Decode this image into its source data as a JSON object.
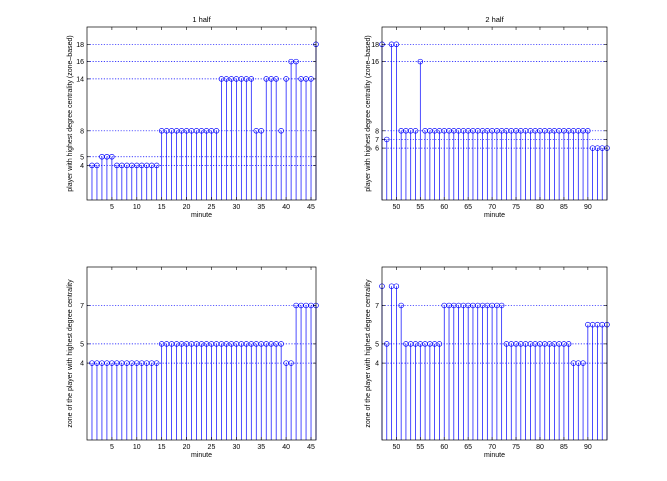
{
  "colors": {
    "series": "#0000ff",
    "axes": "#000000",
    "background": "#ffffff"
  },
  "chart_data": [
    {
      "type": "stem",
      "title": "1 half",
      "xlabel": "minute",
      "ylabel": "player with highest degree centrality (zone–based)",
      "xlim": [
        0,
        46
      ],
      "ylim": [
        0,
        20
      ],
      "xticks": [
        5,
        10,
        15,
        20,
        25,
        30,
        35,
        40,
        45
      ],
      "yticks": [
        4,
        5,
        8,
        14,
        16,
        18
      ],
      "grid": "dotted reference lines at y tick values",
      "x": [
        1,
        2,
        3,
        4,
        5,
        6,
        7,
        8,
        9,
        10,
        11,
        12,
        13,
        14,
        15,
        16,
        17,
        18,
        19,
        20,
        21,
        22,
        23,
        24,
        25,
        26,
        27,
        28,
        29,
        30,
        31,
        32,
        33,
        34,
        35,
        36,
        37,
        38,
        39,
        40,
        41,
        42,
        43,
        44,
        45,
        46
      ],
      "values": [
        4,
        4,
        5,
        5,
        5,
        4,
        4,
        4,
        4,
        4,
        4,
        4,
        4,
        4,
        8,
        8,
        8,
        8,
        8,
        8,
        8,
        8,
        8,
        8,
        8,
        8,
        14,
        14,
        14,
        14,
        14,
        14,
        14,
        8,
        8,
        14,
        14,
        14,
        8,
        14,
        16,
        16,
        14,
        14,
        14,
        18
      ]
    },
    {
      "type": "stem",
      "title": "2 half",
      "xlabel": "minute",
      "ylabel": "player with highest degree centrality (zone–based)",
      "xlim": [
        47,
        94
      ],
      "ylim": [
        0,
        20
      ],
      "xticks": [
        50,
        55,
        60,
        65,
        70,
        75,
        80,
        85,
        90
      ],
      "yticks": [
        6,
        7,
        8,
        16,
        18
      ],
      "grid": "dotted reference lines at y tick values",
      "x": [
        47,
        48,
        49,
        50,
        51,
        52,
        53,
        54,
        55,
        56,
        57,
        58,
        59,
        60,
        61,
        62,
        63,
        64,
        65,
        66,
        67,
        68,
        69,
        70,
        71,
        72,
        73,
        74,
        75,
        76,
        77,
        78,
        79,
        80,
        81,
        82,
        83,
        84,
        85,
        86,
        87,
        88,
        89,
        90,
        91,
        92,
        93,
        94
      ],
      "values": [
        18,
        7,
        18,
        18,
        8,
        8,
        8,
        8,
        16,
        8,
        8,
        8,
        8,
        8,
        8,
        8,
        8,
        8,
        8,
        8,
        8,
        8,
        8,
        8,
        8,
        8,
        8,
        8,
        8,
        8,
        8,
        8,
        8,
        8,
        8,
        8,
        8,
        8,
        8,
        8,
        8,
        8,
        8,
        8,
        6,
        6,
        6,
        6
      ]
    },
    {
      "type": "stem",
      "title": "",
      "xlabel": "minute",
      "ylabel": "zone of the player with highest degree centrality",
      "xlim": [
        0,
        46
      ],
      "ylim": [
        0,
        9
      ],
      "xticks": [
        5,
        10,
        15,
        20,
        25,
        30,
        35,
        40,
        45
      ],
      "yticks": [
        4,
        5,
        7
      ],
      "grid": "dotted reference lines at y tick values",
      "x": [
        1,
        2,
        3,
        4,
        5,
        6,
        7,
        8,
        9,
        10,
        11,
        12,
        13,
        14,
        15,
        16,
        17,
        18,
        19,
        20,
        21,
        22,
        23,
        24,
        25,
        26,
        27,
        28,
        29,
        30,
        31,
        32,
        33,
        34,
        35,
        36,
        37,
        38,
        39,
        40,
        41,
        42,
        43,
        44,
        45,
        46
      ],
      "values": [
        4,
        4,
        4,
        4,
        4,
        4,
        4,
        4,
        4,
        4,
        4,
        4,
        4,
        4,
        5,
        5,
        5,
        5,
        5,
        5,
        5,
        5,
        5,
        5,
        5,
        5,
        5,
        5,
        5,
        5,
        5,
        5,
        5,
        5,
        5,
        5,
        5,
        5,
        5,
        4,
        4,
        7,
        7,
        7,
        7,
        7
      ]
    },
    {
      "type": "stem",
      "title": "",
      "xlabel": "minute",
      "ylabel": "zone of the player with highest degree centrality",
      "xlim": [
        47,
        94
      ],
      "ylim": [
        0,
        9
      ],
      "xticks": [
        50,
        55,
        60,
        65,
        70,
        75,
        80,
        85,
        90
      ],
      "yticks": [
        4,
        5,
        7
      ],
      "grid": "dotted reference lines at y tick values",
      "x": [
        47,
        48,
        49,
        50,
        51,
        52,
        53,
        54,
        55,
        56,
        57,
        58,
        59,
        60,
        61,
        62,
        63,
        64,
        65,
        66,
        67,
        68,
        69,
        70,
        71,
        72,
        73,
        74,
        75,
        76,
        77,
        78,
        79,
        80,
        81,
        82,
        83,
        84,
        85,
        86,
        87,
        88,
        89,
        90,
        91,
        92,
        93,
        94
      ],
      "values": [
        8,
        5,
        8,
        8,
        7,
        5,
        5,
        5,
        5,
        5,
        5,
        5,
        5,
        7,
        7,
        7,
        7,
        7,
        7,
        7,
        7,
        7,
        7,
        7,
        7,
        7,
        5,
        5,
        5,
        5,
        5,
        5,
        5,
        5,
        5,
        5,
        5,
        5,
        5,
        5,
        4,
        4,
        4,
        6,
        6,
        6,
        6,
        6
      ]
    }
  ]
}
